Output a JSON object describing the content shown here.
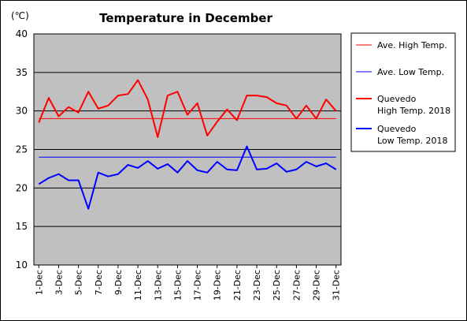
{
  "chart_data": {
    "type": "line",
    "title": "Temperature in December",
    "ylabel": "(℃)",
    "xlabel": "",
    "ylim": [
      10,
      40
    ],
    "yticks": [
      10,
      15,
      20,
      25,
      30,
      35,
      40
    ],
    "grid": "horizontal",
    "legend_position": "right",
    "plot_background": "#c0c0c0",
    "categories": [
      "1-Dec",
      "2-Dec",
      "3-Dec",
      "4-Dec",
      "5-Dec",
      "6-Dec",
      "7-Dec",
      "8-Dec",
      "9-Dec",
      "10-Dec",
      "11-Dec",
      "12-Dec",
      "13-Dec",
      "14-Dec",
      "15-Dec",
      "16-Dec",
      "17-Dec",
      "18-Dec",
      "19-Dec",
      "20-Dec",
      "21-Dec",
      "22-Dec",
      "23-Dec",
      "24-Dec",
      "25-Dec",
      "26-Dec",
      "27-Dec",
      "28-Dec",
      "29-Dec",
      "30-Dec",
      "31-Dec"
    ],
    "tick_labels": [
      "1-Dec",
      "3-Dec",
      "5-Dec",
      "7-Dec",
      "9-Dec",
      "11-Dec",
      "13-Dec",
      "15-Dec",
      "17-Dec",
      "19-Dec",
      "21-Dec",
      "23-Dec",
      "25-Dec",
      "27-Dec",
      "29-Dec",
      "31-Dec"
    ],
    "series": [
      {
        "name": "Ave. High Temp.",
        "color": "#ff0000",
        "style": "thin",
        "values": [
          29,
          29,
          29,
          29,
          29,
          29,
          29,
          29,
          29,
          29,
          29,
          29,
          29,
          29,
          29,
          29,
          29,
          29,
          29,
          29,
          29,
          29,
          29,
          29,
          29,
          29,
          29,
          29,
          29,
          29,
          29
        ]
      },
      {
        "name": "Ave. Low Temp.",
        "color": "#0000ff",
        "style": "thin",
        "values": [
          24,
          24,
          24,
          24,
          24,
          24,
          24,
          24,
          24,
          24,
          24,
          24,
          24,
          24,
          24,
          24,
          24,
          24,
          24,
          24,
          24,
          24,
          24,
          24,
          24,
          24,
          24,
          24,
          24,
          24,
          24
        ]
      },
      {
        "name": "Quevedo High Temp. 2018",
        "legend_lines": [
          "Quevedo",
          "High Temp. 2018"
        ],
        "color": "#ff0000",
        "style": "thick",
        "values": [
          28.5,
          31.7,
          29.3,
          30.5,
          29.8,
          32.5,
          30.3,
          30.7,
          32.0,
          32.2,
          34.0,
          31.5,
          26.6,
          32.0,
          32.5,
          29.5,
          31.0,
          26.8,
          28.6,
          30.2,
          28.8,
          32.0,
          32.0,
          31.8,
          31.0,
          30.7,
          29.0,
          30.7,
          29.0,
          31.5,
          30.0
        ]
      },
      {
        "name": "Quevedo Low Temp. 2018",
        "legend_lines": [
          "Quevedo",
          "Low Temp. 2018"
        ],
        "color": "#0000ff",
        "style": "thick",
        "values": [
          20.5,
          21.3,
          21.8,
          21.0,
          21.0,
          17.3,
          22.0,
          21.5,
          21.8,
          23.0,
          22.6,
          23.5,
          22.5,
          23.1,
          22.0,
          23.5,
          22.3,
          22.0,
          23.4,
          22.4,
          22.3,
          25.4,
          22.4,
          22.5,
          23.2,
          22.1,
          22.4,
          23.4,
          22.8,
          23.2,
          22.4
        ]
      }
    ]
  }
}
